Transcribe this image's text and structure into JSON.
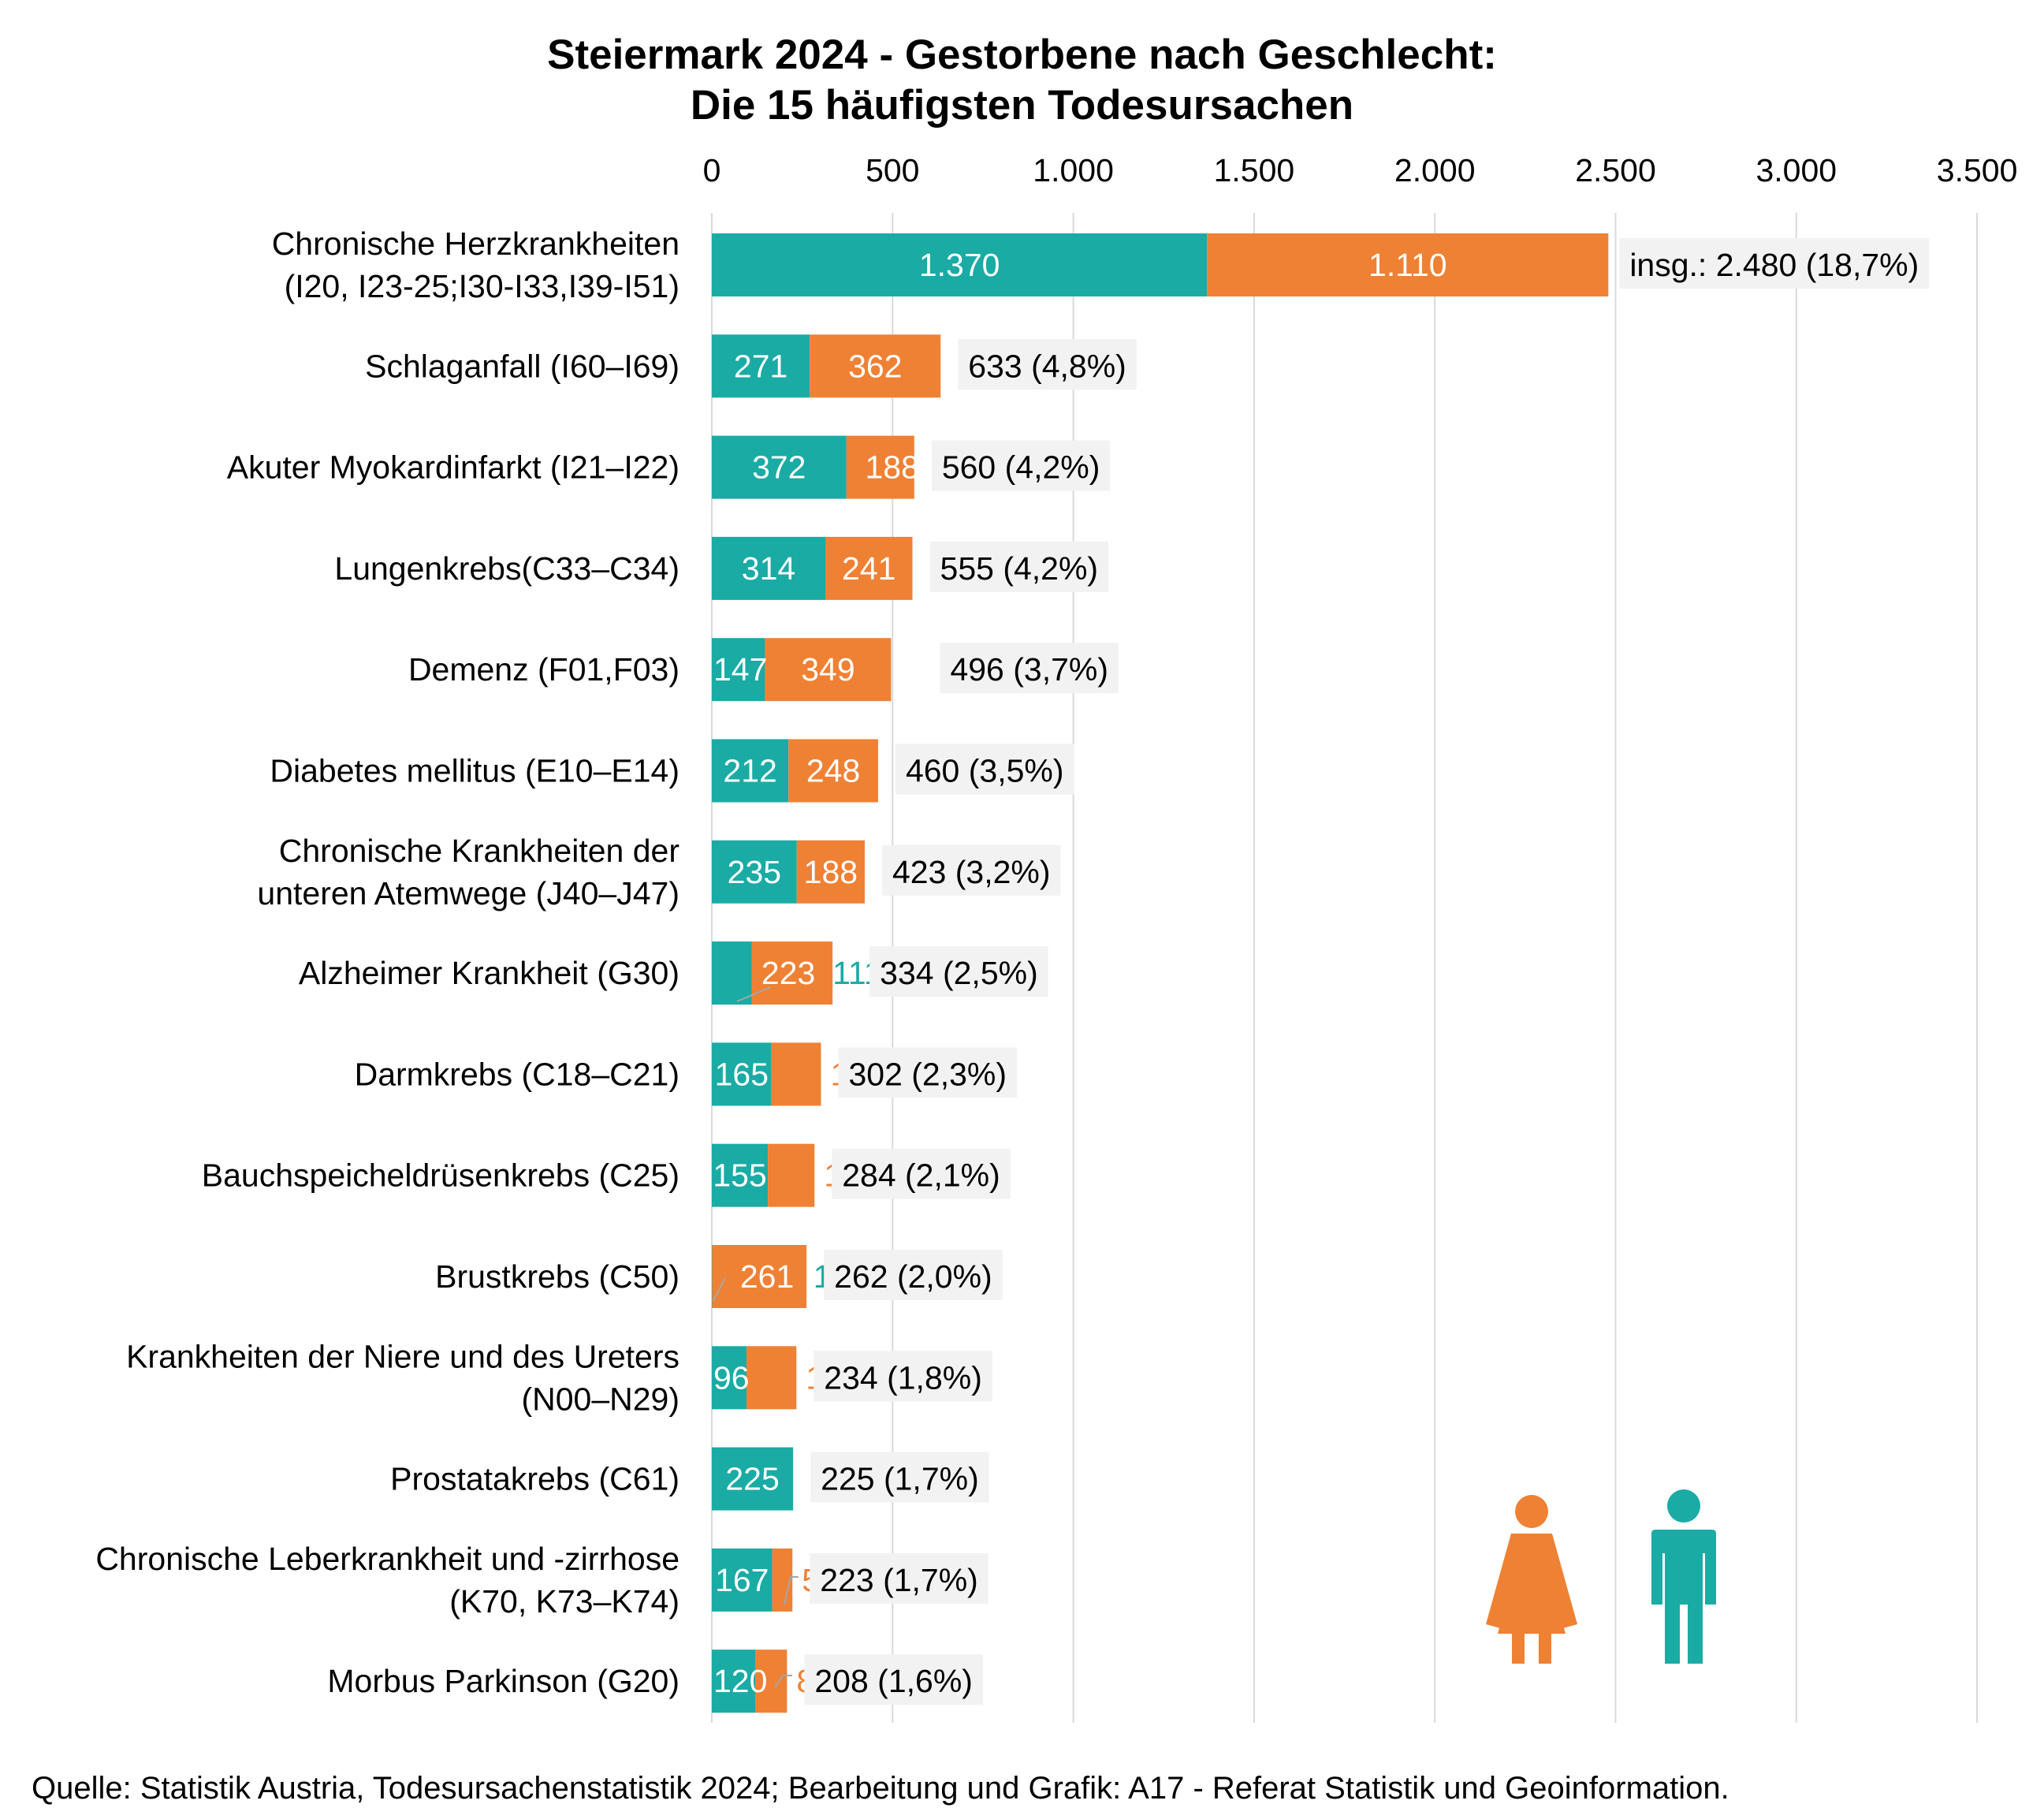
{
  "title": {
    "line1": "Steiermark 2024 - Gestorbene nach Geschlecht:",
    "line2": "Die 15 häufigsten Todesursachen"
  },
  "source": "Quelle: Statistik Austria, Todesursachenstatistik 2024; Bearbeitung und Grafik: A17 - Referat Statistik und Geoinformation.",
  "colors": {
    "male": "#1aaba5",
    "female": "#ef8134",
    "grid": "#d9d9d9",
    "total_box": "#f2f2f2"
  },
  "icons": {
    "female": "female-person-icon",
    "male": "male-person-icon"
  },
  "chart_data": {
    "type": "bar",
    "orientation": "horizontal",
    "stacked": true,
    "xlim": [
      0,
      3500
    ],
    "ticks": [
      "0",
      "500",
      "1.000",
      "1.500",
      "2.000",
      "2.500",
      "3.000",
      "3.500"
    ],
    "tick_values": [
      0,
      500,
      1000,
      1500,
      2000,
      2500,
      3000,
      3500
    ],
    "grid": true,
    "categories": [
      "Chronische Herzkrankheiten\n(I20, I23-25;I30-I33,I39-I51)",
      "Schlaganfall (I60–I69)",
      "Akuter Myokardinfarkt  (I21–I22)",
      "Lungenkrebs(C33–C34)",
      "Demenz (F01,F03)",
      "Diabetes mellitus (E10–E14)",
      "Chronische Krankheiten der\nunteren Atemwege (J40–J47)",
      "Alzheimer Krankheit (G30)",
      "Darmkrebs (C18–C21)",
      "Bauchspeicheldrüsenkrebs (C25)",
      "Brustkrebs (C50)",
      "Krankheiten der Niere und des Ureters\n(N00–N29)",
      "Prostatakrebs (C61)",
      "Chronische Leberkrankheit und -zirrhose\n(K70, K73–K74)",
      "Morbus Parkinson (G20)"
    ],
    "series": [
      {
        "key": "male",
        "values": [
          1370,
          271,
          372,
          314,
          147,
          212,
          235,
          111,
          165,
          155,
          1,
          96,
          225,
          167,
          120
        ],
        "labels": [
          "1.370",
          "271",
          "372",
          "314",
          "147",
          "212",
          "235",
          "111",
          "165",
          "155",
          "1",
          "96",
          "225",
          "167",
          "120"
        ]
      },
      {
        "key": "female",
        "values": [
          1110,
          362,
          188,
          241,
          349,
          248,
          188,
          223,
          137,
          129,
          261,
          138,
          0,
          56,
          88
        ],
        "labels": [
          "1.110",
          "362",
          "188",
          "241",
          "349",
          "248",
          "188",
          "223",
          "137",
          "129",
          "261",
          "138",
          "0",
          "56",
          "88"
        ]
      }
    ],
    "totals": [
      "insg.: 2.480 (18,7%)",
      "633 (4,8%)",
      "560 (4,2%)",
      "555 (4,2%)",
      "496 (3,7%)",
      "460 (3,5%)",
      "423 (3,2%)",
      "334 (2,5%)",
      "302 (2,3%)",
      "284 (2,1%)",
      "262 (2,0%)",
      "234 (1,8%)",
      "225 (1,7%)",
      "223 (1,7%)",
      "208 (1,6%)"
    ]
  }
}
